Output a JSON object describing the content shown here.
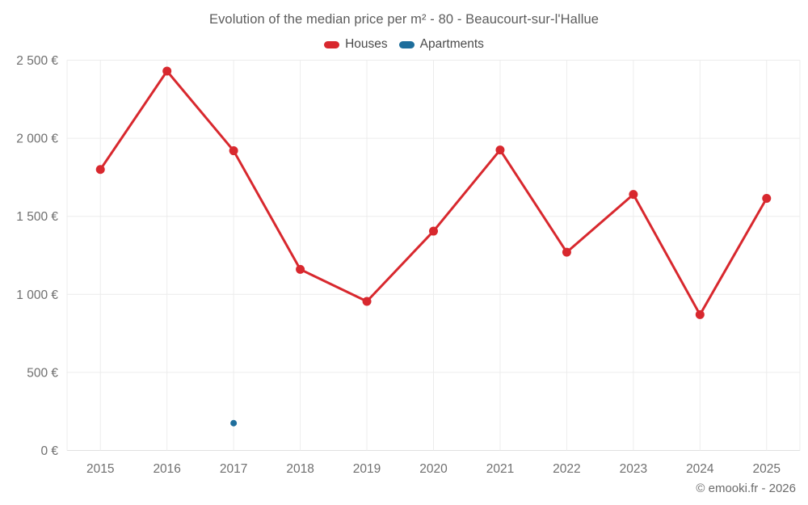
{
  "header": {
    "title": "Evolution of the median price per m² - 80 - Beaucourt-sur-l'Hallue"
  },
  "legend": {
    "items": [
      {
        "id": "houses",
        "label": "Houses",
        "color": "#d8282e"
      },
      {
        "id": "apartments",
        "label": "Apartments",
        "color": "#1e6e9c"
      }
    ]
  },
  "footer": {
    "credit": "© emooki.fr - 2026"
  },
  "chart_data": {
    "type": "line",
    "title": "Evolution of the median price per m² - 80 - Beaucourt-sur-l'Hallue",
    "categories": [
      "2015",
      "2016",
      "2017",
      "2018",
      "2019",
      "2020",
      "2021",
      "2022",
      "2023",
      "2024",
      "2025"
    ],
    "series": [
      {
        "name": "Houses",
        "color": "#d8282e",
        "marker_radius": 5.5,
        "line_width": 3,
        "values": [
          1800,
          2430,
          1920,
          1160,
          955,
          1405,
          1925,
          1270,
          1640,
          870,
          1615
        ]
      },
      {
        "name": "Apartments",
        "color": "#1e6e9c",
        "marker_radius": 4,
        "line_width": 3,
        "values": [
          null,
          null,
          175,
          null,
          null,
          null,
          null,
          null,
          null,
          null,
          null
        ]
      }
    ],
    "xlabel": "",
    "ylabel": "",
    "ylim": [
      0,
      2500
    ],
    "y_tick_interval": 500,
    "y_tick_labels": [
      "0 €",
      "500 €",
      "1 000 €",
      "1 500 €",
      "2 000 €",
      "2 500 €"
    ],
    "grid": true,
    "legend_position": "top",
    "footer": "© emooki.fr - 2026",
    "colors": {
      "grid_line": "#ececec",
      "axis_line": "#e0e0e0",
      "tick_label": "#6f6f6f"
    }
  }
}
